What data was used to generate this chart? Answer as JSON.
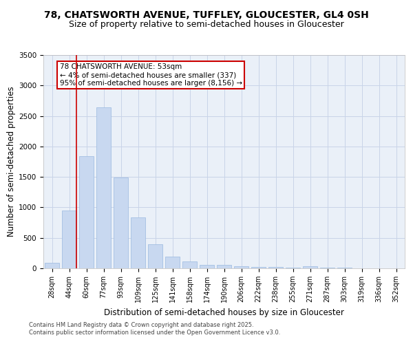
{
  "title_line1": "78, CHATSWORTH AVENUE, TUFFLEY, GLOUCESTER, GL4 0SH",
  "title_line2": "Size of property relative to semi-detached houses in Gloucester",
  "xlabel": "Distribution of semi-detached houses by size in Gloucester",
  "ylabel": "Number of semi-detached properties",
  "categories": [
    "28sqm",
    "44sqm",
    "60sqm",
    "77sqm",
    "93sqm",
    "109sqm",
    "125sqm",
    "141sqm",
    "158sqm",
    "174sqm",
    "190sqm",
    "206sqm",
    "222sqm",
    "238sqm",
    "255sqm",
    "271sqm",
    "287sqm",
    "303sqm",
    "319sqm",
    "336sqm",
    "352sqm"
  ],
  "values": [
    95,
    950,
    1840,
    2640,
    1490,
    830,
    390,
    195,
    110,
    60,
    55,
    35,
    25,
    18,
    10,
    30,
    10,
    15,
    5,
    5,
    5
  ],
  "bar_color": "#c8d8f0",
  "bar_edge_color": "#9ab8e0",
  "grid_color": "#c8d4e8",
  "background_color": "#eaf0f8",
  "annotation_text": "78 CHATSWORTH AVENUE: 53sqm\n← 4% of semi-detached houses are smaller (337)\n95% of semi-detached houses are larger (8,156) →",
  "vline_color": "#cc0000",
  "box_edge_color": "#cc0000",
  "ylim": [
    0,
    3500
  ],
  "yticks": [
    0,
    500,
    1000,
    1500,
    2000,
    2500,
    3000,
    3500
  ],
  "footnote": "Contains HM Land Registry data © Crown copyright and database right 2025.\nContains public sector information licensed under the Open Government Licence v3.0.",
  "title_fontsize": 10,
  "subtitle_fontsize": 9,
  "axis_label_fontsize": 8.5,
  "tick_fontsize": 7,
  "annot_fontsize": 7.5,
  "footnote_fontsize": 6
}
